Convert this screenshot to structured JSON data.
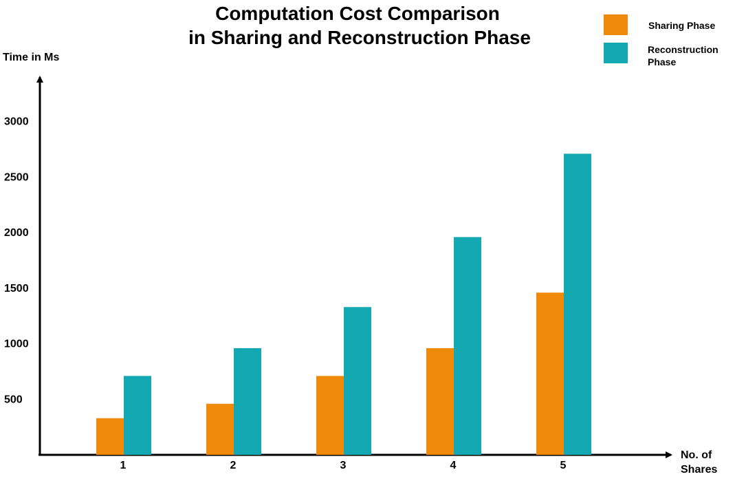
{
  "chart_data": {
    "type": "bar",
    "title": [
      "Computation Cost Comparison",
      "in Sharing and Reconstruction Phase"
    ],
    "xlabel": [
      "No. of",
      "Shares"
    ],
    "ylabel": "Time in Ms",
    "categories": [
      "1",
      "2",
      "3",
      "4",
      "5"
    ],
    "y_ticks": [
      500,
      1000,
      1500,
      2000,
      2500,
      3000
    ],
    "ylim": [
      0,
      3400
    ],
    "grid": false,
    "legend_position": "top-right",
    "series": [
      {
        "name": "Sharing Phase",
        "legend_lines": [
          "Sharing Phase"
        ],
        "color": "#F08A0A",
        "values": [
          330,
          460,
          710,
          960,
          1460
        ]
      },
      {
        "name": "Reconstruction Phase",
        "legend_lines": [
          "Reconstruction",
          "Phase"
        ],
        "color": "#14A8B3",
        "values": [
          710,
          960,
          1330,
          1960,
          2710
        ]
      }
    ]
  }
}
